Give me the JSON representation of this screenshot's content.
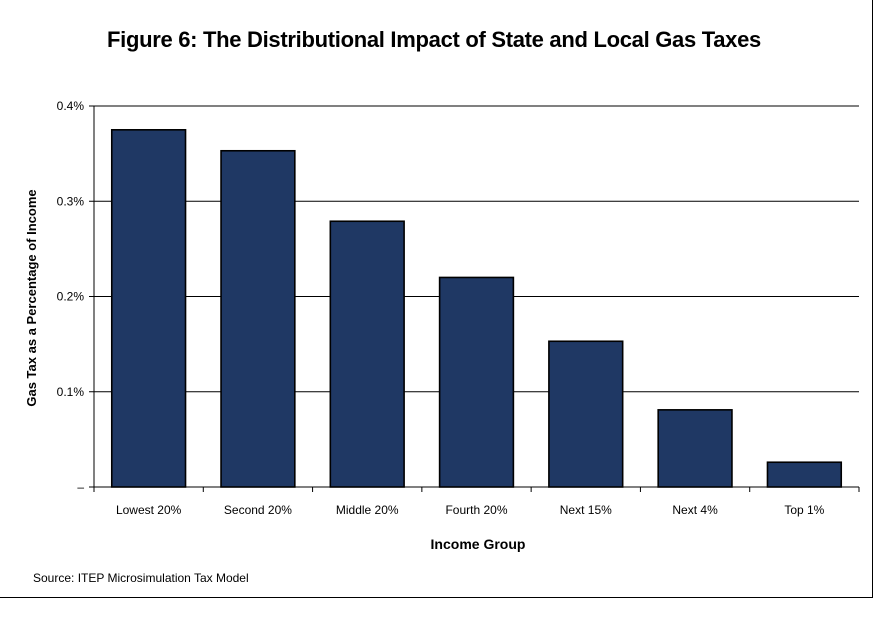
{
  "chart_data": {
    "type": "bar",
    "title": "Figure 6: The Distributional Impact of State and Local Gas Taxes",
    "xlabel": "Income Group",
    "ylabel": "Gas Tax as a Percentage of Income",
    "categories": [
      "Lowest 20%",
      "Second 20%",
      "Middle 20%",
      "Fourth 20%",
      "Next 15%",
      "Next 4%",
      "Top 1%"
    ],
    "values": [
      0.375,
      0.353,
      0.279,
      0.22,
      0.153,
      0.081,
      0.026
    ],
    "ylim": [
      0,
      0.4
    ],
    "yticks": [
      0,
      0.1,
      0.2,
      0.3,
      0.4
    ],
    "ytick_labels": [
      "–",
      "0.1%",
      "0.2%",
      "0.3%",
      "0.4%"
    ],
    "grid": true,
    "legend": "none",
    "bar_color": "#1f3864",
    "source": "Source: ITEP Microsimulation Tax Model"
  }
}
